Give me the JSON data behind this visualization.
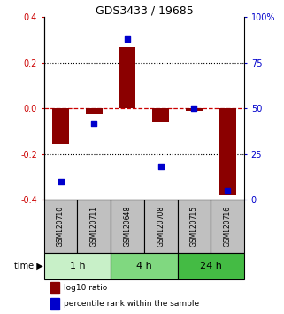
{
  "title": "GDS3433 / 19685",
  "samples": [
    "GSM120710",
    "GSM120711",
    "GSM120648",
    "GSM120708",
    "GSM120715",
    "GSM120716"
  ],
  "log10_ratio": [
    -0.155,
    -0.022,
    0.27,
    -0.062,
    -0.01,
    -0.38
  ],
  "percentile_rank": [
    10,
    42,
    88,
    18,
    50,
    5
  ],
  "time_groups": [
    {
      "label": "1 h",
      "indices": [
        0,
        1
      ],
      "color": "#c8f0c8"
    },
    {
      "label": "4 h",
      "indices": [
        2,
        3
      ],
      "color": "#80d880"
    },
    {
      "label": "24 h",
      "indices": [
        4,
        5
      ],
      "color": "#44bb44"
    }
  ],
  "bar_color": "#8B0000",
  "dot_color": "#0000CC",
  "zero_line_color": "#CC0000",
  "dotted_line_color": "#000000",
  "ylim_left": [
    -0.4,
    0.4
  ],
  "ylim_right": [
    0,
    100
  ],
  "yticks_left": [
    -0.4,
    -0.2,
    0.0,
    0.2,
    0.4
  ],
  "yticks_right": [
    0,
    25,
    50,
    75,
    100
  ],
  "yticklabels_right": [
    "0",
    "25",
    "50",
    "75",
    "100%"
  ],
  "left_tick_color": "#CC0000",
  "right_tick_color": "#0000CC",
  "legend_red_label": "log10 ratio",
  "legend_blue_label": "percentile rank within the sample",
  "bar_width": 0.5,
  "sample_box_color": "#C0C0C0"
}
